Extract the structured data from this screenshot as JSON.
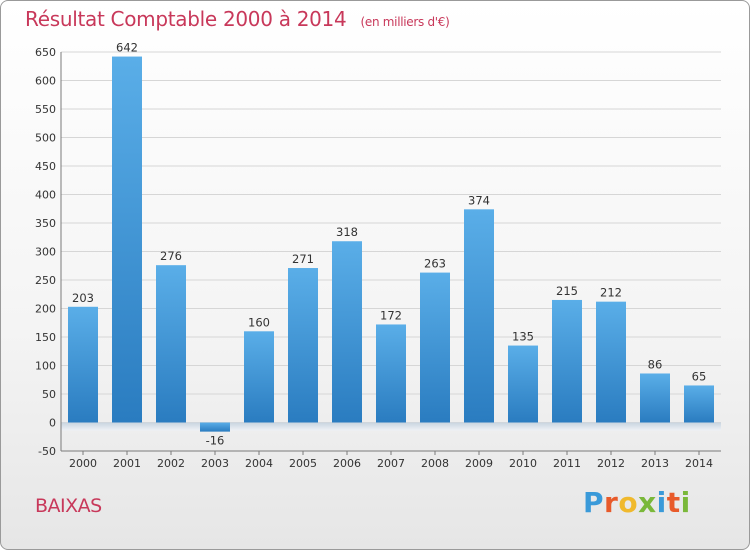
{
  "title": {
    "main": "Résultat Comptable 2000 à 2014",
    "unit": "(en milliers d'€)"
  },
  "town": "BAIXAS",
  "logo": {
    "text": "Proxiti",
    "colors": [
      "#3a9ad9",
      "#e85a2a",
      "#f0b92d",
      "#7ab83a",
      "#3a9ad9",
      "#e85a2a",
      "#7ab83a"
    ]
  },
  "colors": {
    "title": "#c8385a",
    "bar_light": "#5aaee8",
    "bar_dark": "#2a7cc0"
  },
  "chart_data": {
    "type": "bar",
    "categories": [
      "2000",
      "2001",
      "2002",
      "2003",
      "2004",
      "2005",
      "2006",
      "2007",
      "2008",
      "2009",
      "2010",
      "2011",
      "2012",
      "2013",
      "2014"
    ],
    "values": [
      203,
      642,
      276,
      -16,
      160,
      271,
      318,
      172,
      263,
      374,
      135,
      215,
      212,
      86,
      65
    ],
    "data_labels": [
      "203",
      "642",
      "276",
      "-16",
      "160",
      "271",
      "318",
      "172",
      "263",
      "374",
      "135",
      "215",
      "212",
      "86",
      "65"
    ],
    "y_ticks": [
      "-50",
      "0",
      "50",
      "100",
      "150",
      "200",
      "250",
      "300",
      "350",
      "400",
      "450",
      "500",
      "550",
      "600",
      "650"
    ],
    "y_tick_values": [
      -50,
      0,
      50,
      100,
      150,
      200,
      250,
      300,
      350,
      400,
      450,
      500,
      550,
      600,
      650
    ],
    "ylim": [
      -50,
      650
    ],
    "grid": true,
    "title": "Résultat Comptable 2000 à 2014",
    "xlabel": "",
    "ylabel": ""
  }
}
